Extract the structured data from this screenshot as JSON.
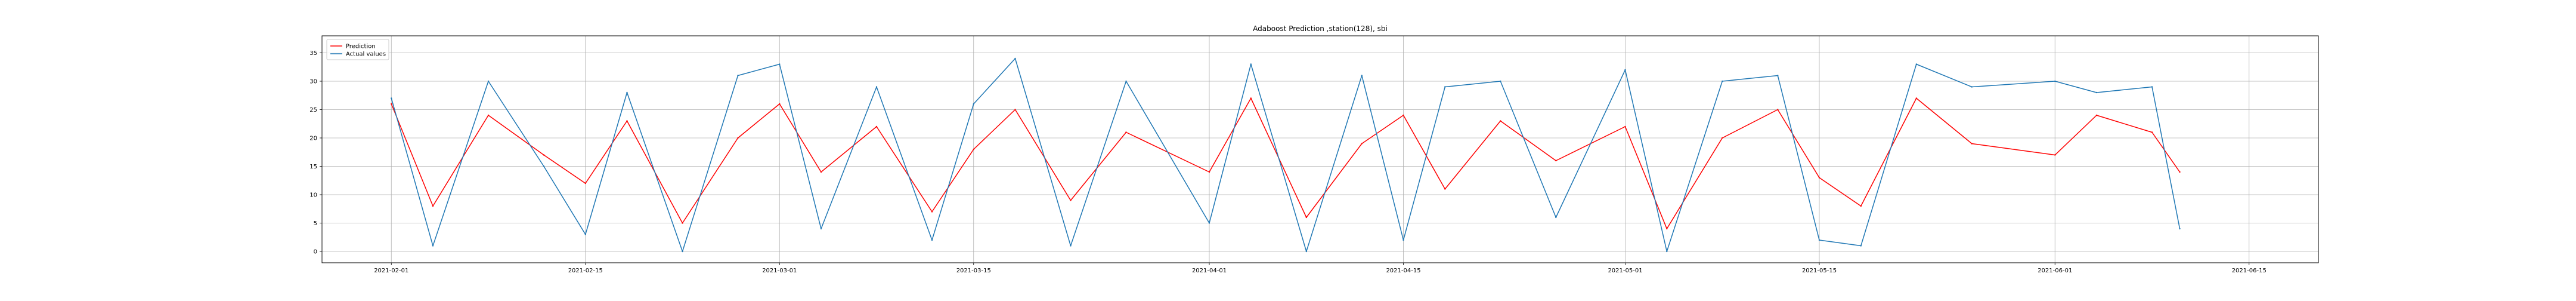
{
  "chart_data": {
    "type": "line",
    "title": "Adaboost Prediction ,station(128), sbi",
    "xlabel": "",
    "ylabel": "",
    "xlim": [
      "2021-01-27",
      "2021-06-20"
    ],
    "ylim": [
      -2,
      38
    ],
    "grid": true,
    "legend_position": "top-left",
    "x_ticks": [
      "2021-02-01",
      "2021-02-15",
      "2021-03-01",
      "2021-03-15",
      "2021-04-01",
      "2021-04-15",
      "2021-05-01",
      "2021-05-15",
      "2021-06-01",
      "2021-06-15"
    ],
    "y_ticks": [
      0,
      5,
      10,
      15,
      20,
      25,
      30,
      35
    ],
    "series": [
      {
        "name": "Prediction",
        "color": "#ff0000",
        "x": [
          "2021-02-01",
          "2021-02-04",
          "2021-02-08",
          "2021-02-12",
          "2021-02-15",
          "2021-02-18",
          "2021-02-22",
          "2021-02-26",
          "2021-03-01",
          "2021-03-04",
          "2021-03-08",
          "2021-03-12",
          "2021-03-15",
          "2021-03-18",
          "2021-03-22",
          "2021-03-26",
          "2021-04-01",
          "2021-04-04",
          "2021-04-08",
          "2021-04-12",
          "2021-04-15",
          "2021-04-18",
          "2021-04-22",
          "2021-04-26",
          "2021-05-01",
          "2021-05-04",
          "2021-05-08",
          "2021-05-12",
          "2021-05-15",
          "2021-05-18",
          "2021-05-22",
          "2021-05-26",
          "2021-06-01",
          "2021-06-04",
          "2021-06-08",
          "2021-06-10"
        ],
        "y": [
          26,
          8,
          24,
          17,
          12,
          23,
          5,
          20,
          26,
          14,
          22,
          7,
          18,
          25,
          9,
          21,
          14,
          27,
          6,
          19,
          24,
          11,
          23,
          16,
          22,
          4,
          20,
          25,
          13,
          8,
          27,
          19,
          17,
          24,
          21,
          14
        ]
      },
      {
        "name": "Actual values",
        "color": "#1f77b4",
        "x": [
          "2021-02-01",
          "2021-02-04",
          "2021-02-08",
          "2021-02-12",
          "2021-02-15",
          "2021-02-18",
          "2021-02-22",
          "2021-02-26",
          "2021-03-01",
          "2021-03-04",
          "2021-03-08",
          "2021-03-12",
          "2021-03-15",
          "2021-03-18",
          "2021-03-22",
          "2021-03-26",
          "2021-04-01",
          "2021-04-04",
          "2021-04-08",
          "2021-04-12",
          "2021-04-15",
          "2021-04-18",
          "2021-04-22",
          "2021-04-26",
          "2021-05-01",
          "2021-05-04",
          "2021-05-08",
          "2021-05-12",
          "2021-05-15",
          "2021-05-18",
          "2021-05-22",
          "2021-05-26",
          "2021-06-01",
          "2021-06-04",
          "2021-06-08",
          "2021-06-10"
        ],
        "y": [
          27,
          1,
          30,
          15,
          3,
          28,
          0,
          31,
          33,
          4,
          29,
          2,
          26,
          34,
          1,
          30,
          5,
          33,
          0,
          31,
          2,
          29,
          30,
          6,
          32,
          0,
          30,
          31,
          2,
          1,
          33,
          29,
          30,
          28,
          29,
          4
        ]
      }
    ]
  }
}
